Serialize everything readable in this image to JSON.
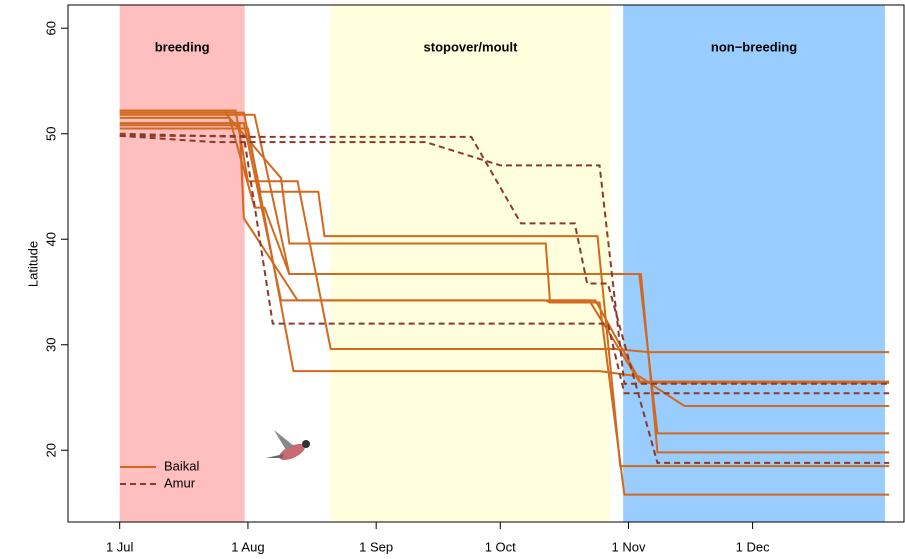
{
  "chart_data": {
    "type": "line",
    "y_label": "Latitude",
    "xlim": [
      -12.5,
      189.6
    ],
    "ylim": [
      13.2,
      62.2
    ],
    "xticks": [
      {
        "value": 0,
        "label": "1 Jul"
      },
      {
        "value": 31,
        "label": "1 Aug"
      },
      {
        "value": 62,
        "label": "1 Sep"
      },
      {
        "value": 92,
        "label": "1 Oct"
      },
      {
        "value": 123,
        "label": "1 Nov"
      },
      {
        "value": 153,
        "label": "1 Dec"
      }
    ],
    "yticks": [
      20,
      30,
      40,
      50,
      60
    ],
    "periods": [
      {
        "name": "breeding",
        "start": 0,
        "end": 30.2,
        "color": "#ffbfbf"
      },
      {
        "name": "stopover/moult",
        "start": 51,
        "end": 118.6,
        "color": "#ffffdd"
      },
      {
        "name": "non−breeding",
        "start": 121.7,
        "end": 185,
        "color": "#99ccff"
      }
    ],
    "legend": "bottom-left",
    "groups": [
      {
        "name": "Baikal",
        "color": "#d2691e",
        "dashed": false,
        "tracks": [
          {
            "x": [
              0,
              28,
              31,
              43,
              51,
              119.6,
              128,
              186
            ],
            "values": [
              52.2,
              52.2,
              45.5,
              45.5,
              29.6,
              29.6,
              29.3,
              29.3
            ]
          },
          {
            "x": [
              0,
              30,
              34,
              48,
              49.5,
              115.5,
              121,
              186
            ],
            "values": [
              52,
              52,
              44.5,
              44.5,
              40.3,
              40.3,
              18.5,
              18.5
            ]
          },
          {
            "x": [
              0,
              26.5,
              32.6,
              35,
              41,
              125.6,
              130,
              186
            ],
            "values": [
              51.5,
              51.5,
              43,
              43,
              36.7,
              36.7,
              21.6,
              21.6
            ]
          },
          {
            "x": [
              0,
              30,
              39,
              103,
              104,
              116,
              122,
              186
            ],
            "values": [
              51,
              51,
              34.2,
              34.2,
              34,
              34,
              15.8,
              15.8
            ]
          },
          {
            "x": [
              0,
              25,
              39,
              41,
              103,
              104,
              115,
              126,
              186
            ],
            "values": [
              52.2,
              52.2,
              45.8,
              39.6,
              39.6,
              34.2,
              34.2,
              26.4,
              26.4
            ]
          },
          {
            "x": [
              0,
              31,
              42,
              116,
              125.6,
              136.5,
              186
            ],
            "values": [
              50.5,
              50.5,
              27.5,
              27.5,
              27,
              24.2,
              24.2
            ]
          },
          {
            "x": [
              0,
              32.6,
              41,
              126,
              130,
              186
            ],
            "values": [
              51.8,
              51.8,
              36.7,
              36.7,
              19.8,
              19.8
            ]
          },
          {
            "x": [
              0,
              29,
              30,
              43,
              113.5,
              125.6,
              186
            ],
            "values": [
              50.8,
              50.8,
              42,
              34.2,
              34.2,
              26.5,
              26.5
            ]
          }
        ]
      },
      {
        "name": "Amur",
        "color": "#8b3a2a",
        "dashed": true,
        "tracks": [
          {
            "x": [
              0,
              30,
              37,
              118,
              122,
              186
            ],
            "values": [
              49.8,
              49.8,
              32,
              32,
              25.4,
              25.4
            ]
          },
          {
            "x": [
              0,
              23,
              74,
              92,
              116,
              122,
              186
            ],
            "values": [
              49.8,
              49.2,
              49.2,
              47,
              47,
              26.3,
              26.3
            ]
          },
          {
            "x": [
              0,
              29,
              85,
              97,
              110,
              113,
              118,
              130,
              186
            ],
            "values": [
              50,
              49.7,
              49.7,
              41.5,
              41.5,
              35.8,
              35.8,
              18.8,
              18.8
            ]
          }
        ]
      }
    ]
  }
}
